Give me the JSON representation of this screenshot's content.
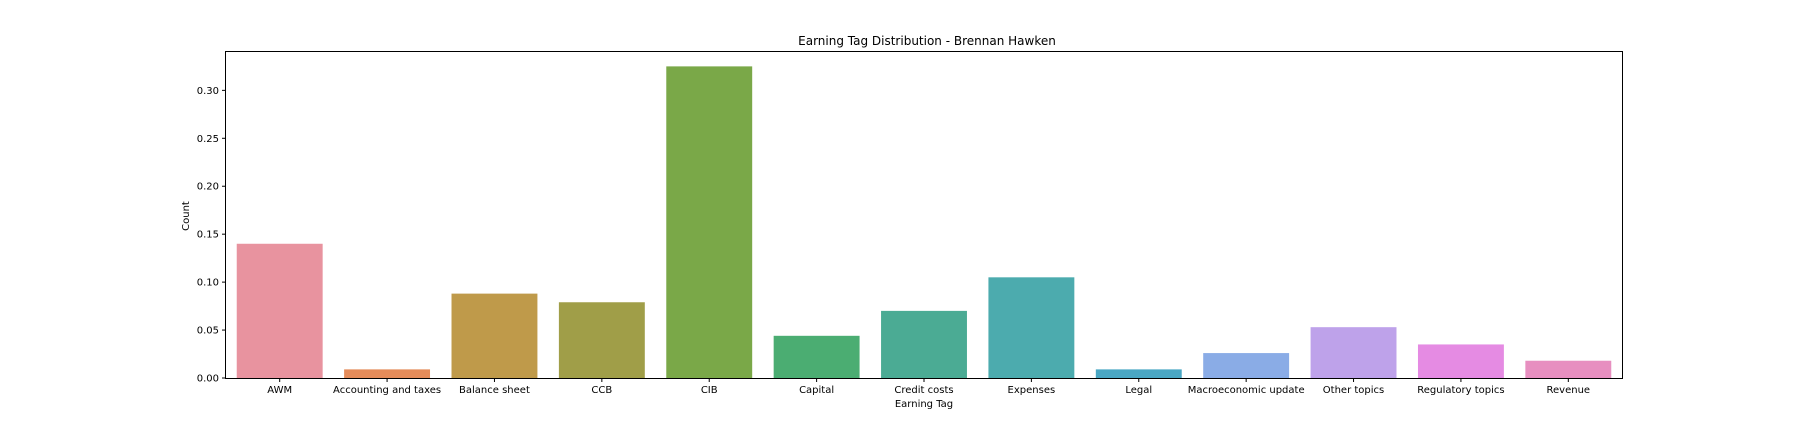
{
  "chart_data": {
    "type": "bar",
    "title": "Earning Tag Distribution - Brennan Hawken",
    "xlabel": "Earning Tag",
    "ylabel": "Count",
    "ylim": [
      0,
      0.34
    ],
    "yticks": [
      "0.00",
      "0.05",
      "0.10",
      "0.15",
      "0.20",
      "0.25",
      "0.30"
    ],
    "grid": false,
    "legend": "none",
    "categories": [
      "AWM",
      "Accounting and taxes",
      "Balance sheet",
      "CCB",
      "CIB",
      "Capital",
      "Credit costs",
      "Expenses",
      "Legal",
      "Macroeconomic update",
      "Other topics",
      "Regulatory topics",
      "Revenue"
    ],
    "values": [
      0.14,
      0.009,
      0.088,
      0.079,
      0.325,
      0.044,
      0.07,
      0.105,
      0.009,
      0.026,
      0.053,
      0.035,
      0.018
    ],
    "colors": [
      "#e8939f",
      "#e58c5a",
      "#bf9a4a",
      "#a09e48",
      "#7aa848",
      "#4bad72",
      "#4bab94",
      "#4cabae",
      "#4aa7c4",
      "#8aace6",
      "#bea2ea",
      "#e58be3",
      "#e78fc0"
    ]
  }
}
